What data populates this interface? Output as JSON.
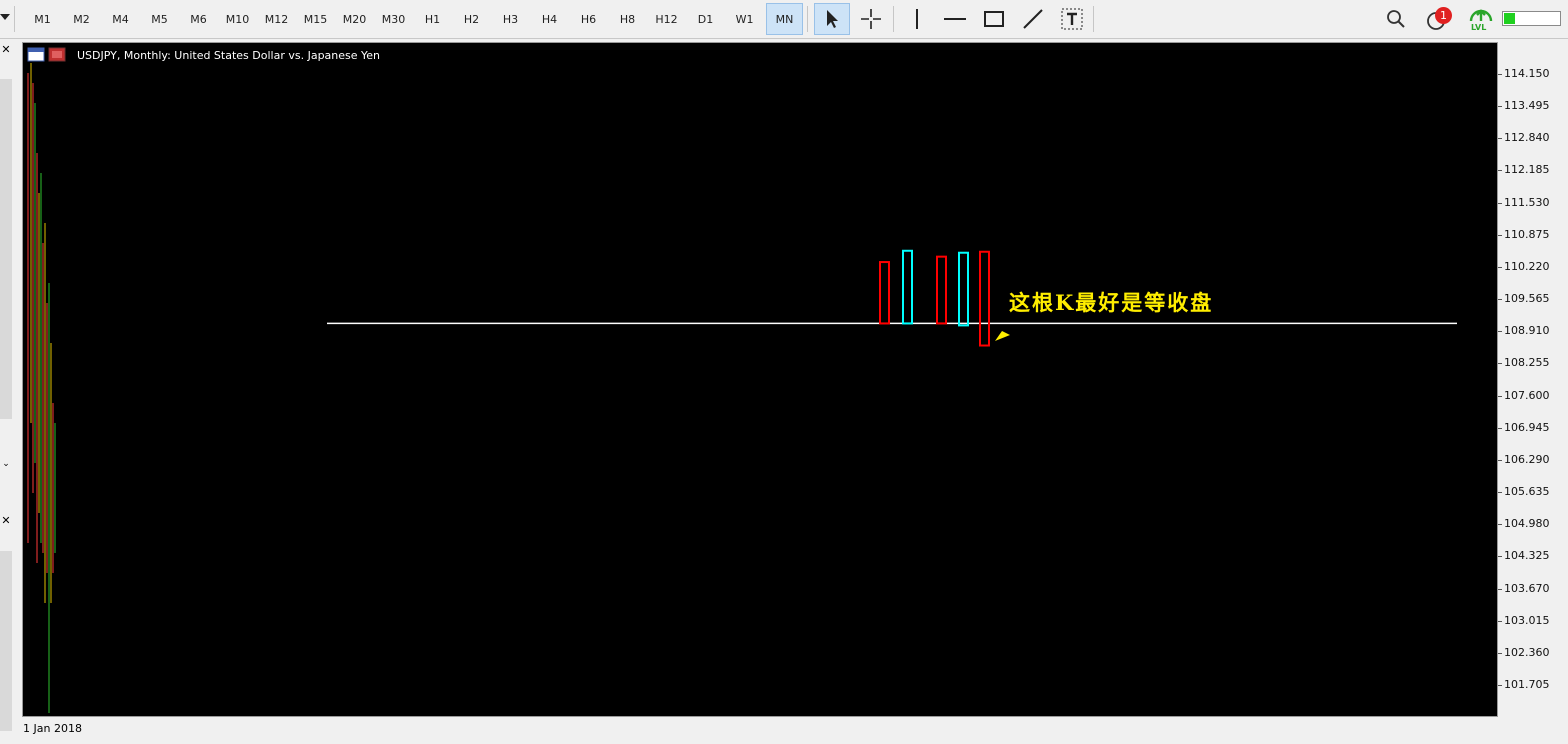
{
  "toolbar": {
    "timeframes": [
      "M1",
      "M2",
      "M4",
      "M5",
      "M6",
      "M10",
      "M12",
      "M15",
      "M20",
      "M30",
      "H1",
      "H2",
      "H3",
      "H4",
      "H6",
      "H8",
      "H12",
      "D1",
      "W1",
      "MN"
    ],
    "active_timeframe": "MN",
    "notification_count": "1",
    "lvl_label": "LVL",
    "status_fill": 0.2
  },
  "chart": {
    "title": "USDJPY, Monthly:  United States Dollar vs. Japanese Yen",
    "annotation": "这根K最好是等收盘",
    "date_label": "1 Jan 2018",
    "y_ticks": [
      "114.150",
      "113.495",
      "112.840",
      "112.185",
      "111.530",
      "110.875",
      "110.220",
      "109.565",
      "108.910",
      "108.255",
      "107.600",
      "106.945",
      "106.290",
      "105.635",
      "104.980",
      "104.325",
      "103.670",
      "103.015",
      "102.360",
      "101.705"
    ],
    "y_range": [
      101.705,
      114.15
    ],
    "horizontal_line_price": 109.09,
    "bull_color": "#00ffff",
    "bear_color": "#ff0000",
    "candles": [
      {
        "type": "bear",
        "high": 110.34,
        "low": 109.09
      },
      {
        "type": "bull",
        "high": 110.57,
        "low": 109.09
      },
      {
        "type": "bear",
        "high": 110.45,
        "low": 109.09
      },
      {
        "type": "bull",
        "high": 110.53,
        "low": 109.05
      },
      {
        "type": "bear",
        "high": 110.55,
        "low": 108.64
      }
    ]
  }
}
